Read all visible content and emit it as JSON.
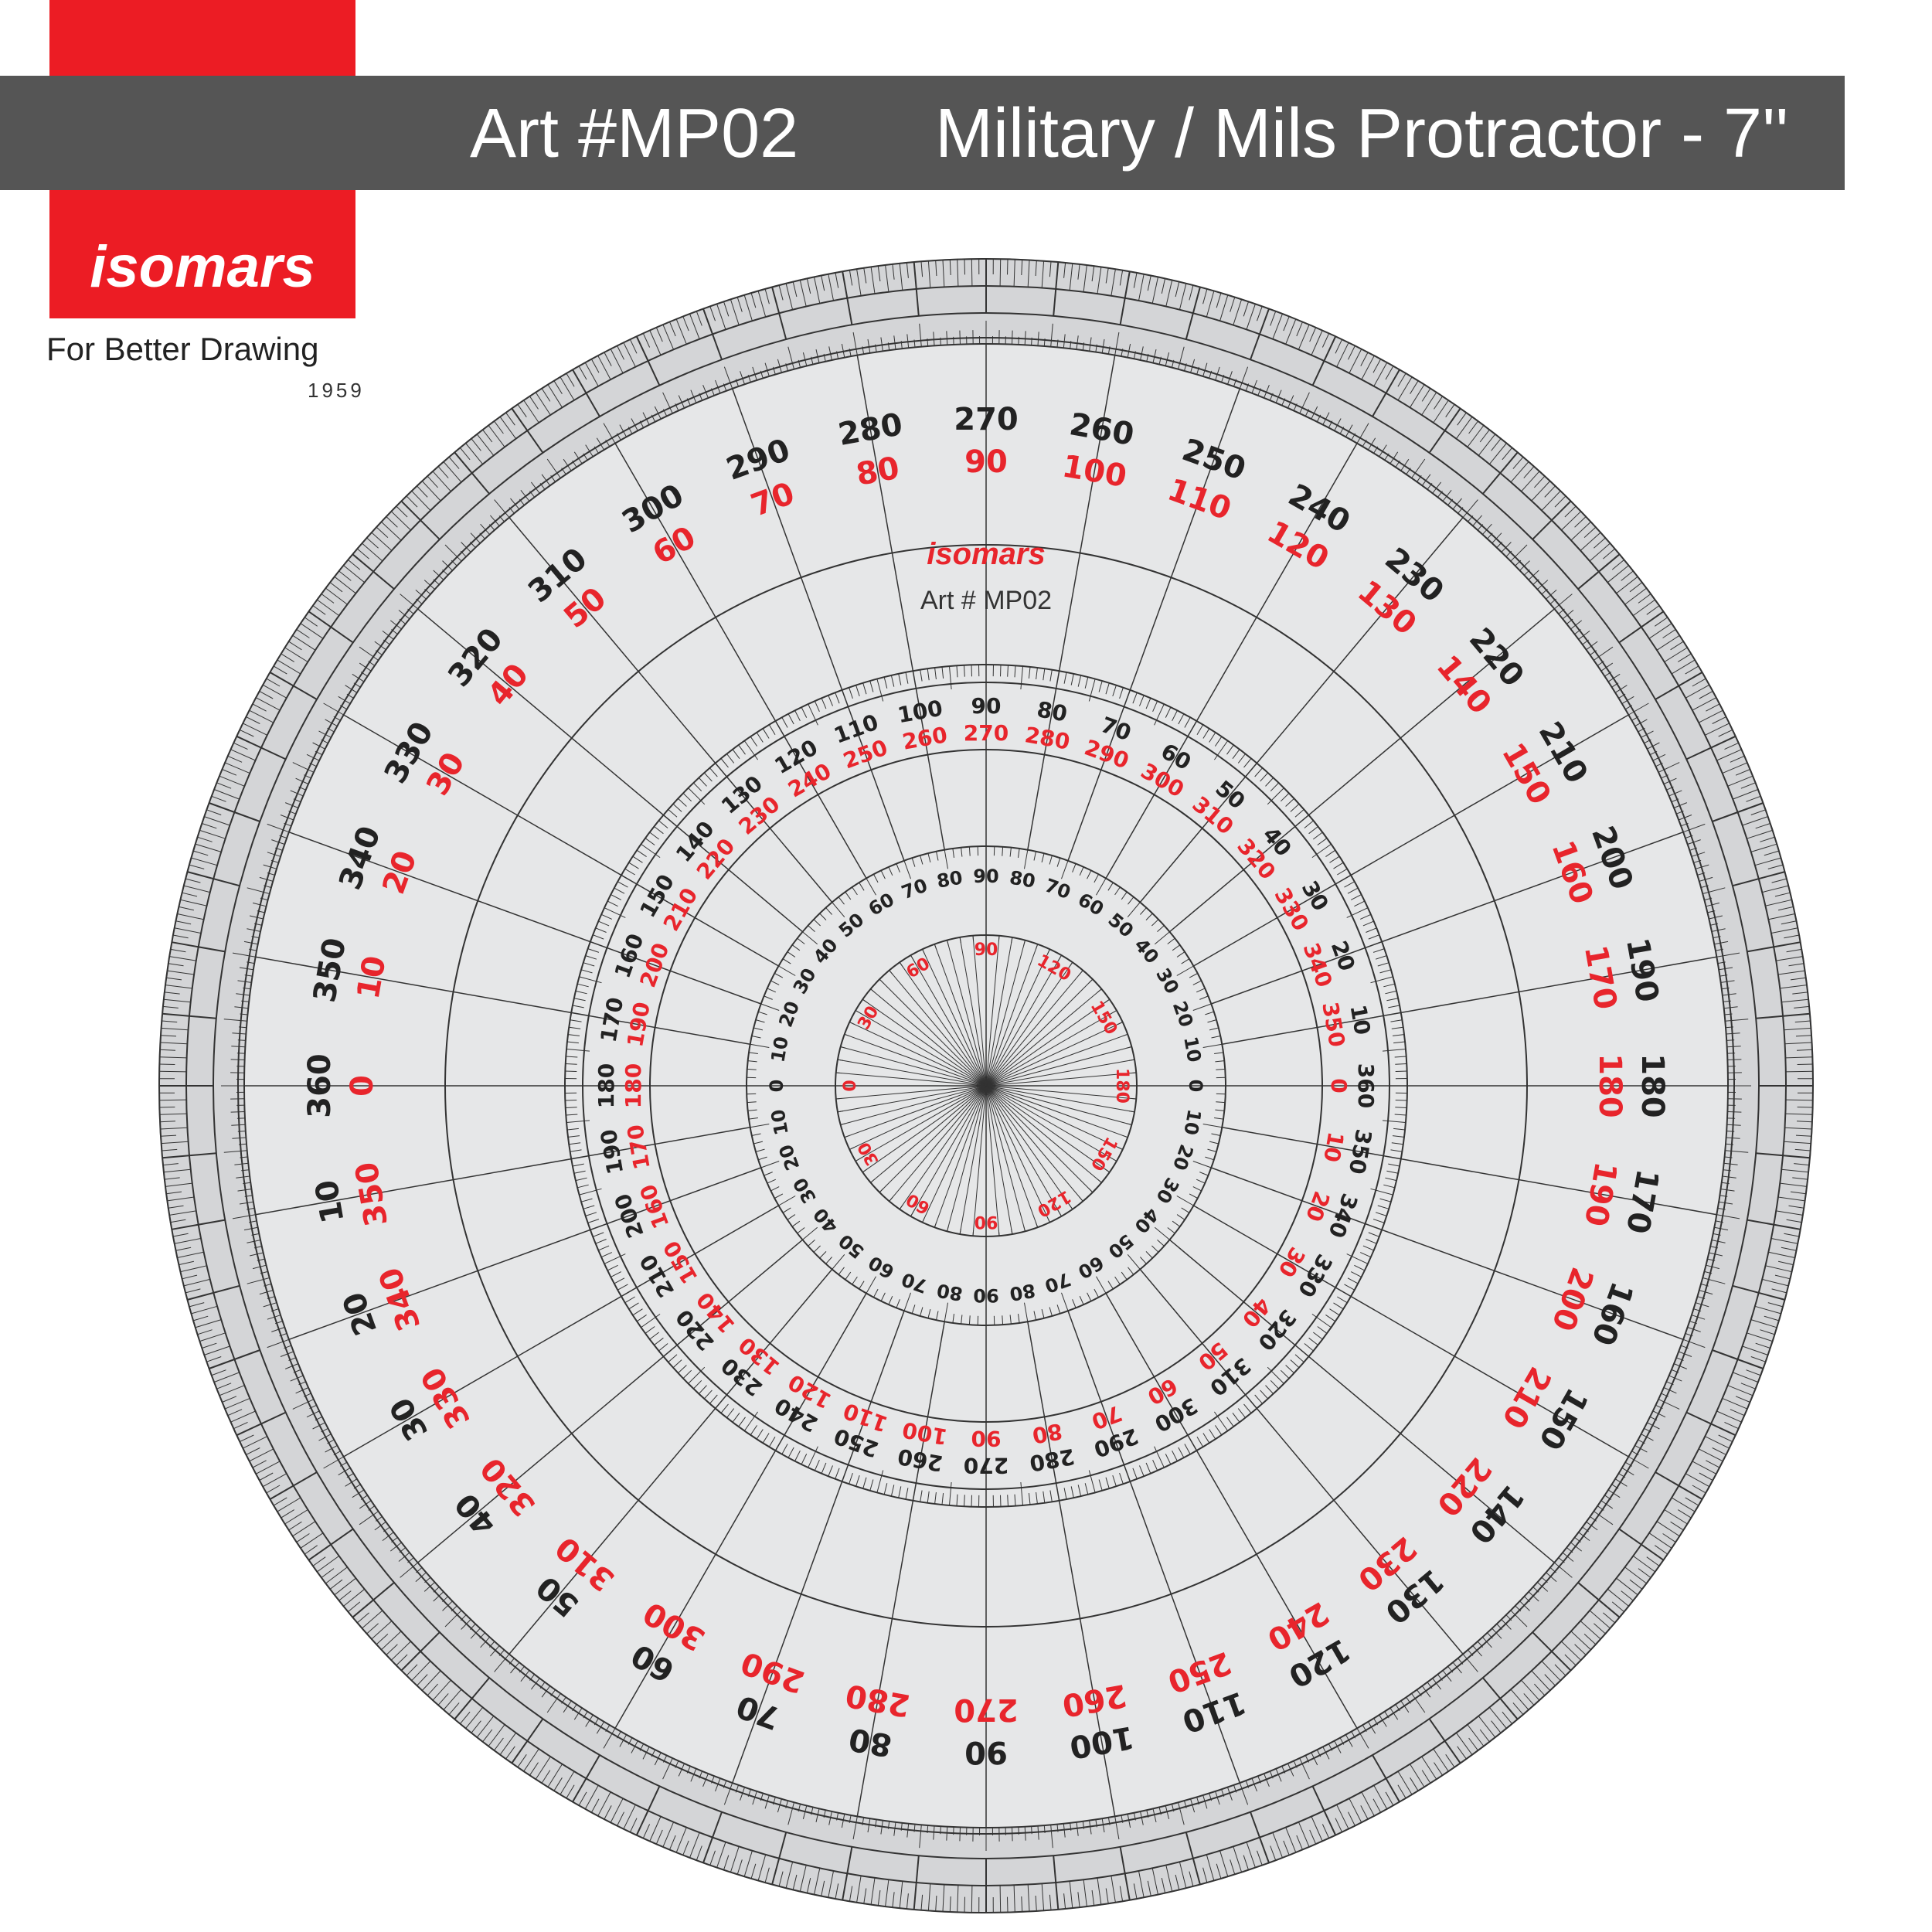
{
  "header": {
    "art_title": "Art #MP02",
    "product_title": "Military / Mils Protractor - 7''"
  },
  "brand": {
    "logo_text": "isomars",
    "tagline": "For Better Drawing",
    "year": "1959",
    "color": "#ec1c24"
  },
  "protractor": {
    "center_brand": "isomars",
    "center_art": "Art # MP02",
    "outer_black_labels": [
      "360",
      "350",
      "340",
      "330",
      "320",
      "310",
      "300",
      "290",
      "280",
      "270",
      "260",
      "250",
      "240",
      "230",
      "220",
      "210",
      "200",
      "190",
      "180",
      "170",
      "160",
      "150",
      "140",
      "130",
      "120",
      "110",
      "100",
      "90",
      "80",
      "70",
      "60",
      "50",
      "40",
      "30",
      "20",
      "10"
    ],
    "outer_red_labels": [
      "0",
      "10",
      "20",
      "30",
      "40",
      "50",
      "60",
      "70",
      "80",
      "90",
      "100",
      "110",
      "120",
      "130",
      "140",
      "150",
      "160",
      "170",
      "180",
      "190",
      "200",
      "210",
      "220",
      "230",
      "240",
      "250",
      "260",
      "270",
      "280",
      "290",
      "300",
      "310",
      "320",
      "330",
      "340",
      "350"
    ],
    "middle_black_labels": [
      "180",
      "170",
      "160",
      "150",
      "140",
      "130",
      "120",
      "110",
      "100",
      "90",
      "80",
      "70",
      "60",
      "50",
      "40",
      "30",
      "20",
      "10",
      "360",
      "350",
      "340",
      "330",
      "320",
      "310",
      "300",
      "290",
      "280",
      "270",
      "260",
      "250",
      "240",
      "230",
      "220",
      "210",
      "200",
      "190"
    ],
    "middle_red_labels": [
      "180",
      "190",
      "200",
      "210",
      "220",
      "230",
      "240",
      "250",
      "260",
      "270",
      "280",
      "290",
      "300",
      "310",
      "320",
      "330",
      "340",
      "350",
      "0",
      "10",
      "20",
      "30",
      "40",
      "50",
      "60",
      "70",
      "80",
      "90",
      "100",
      "110",
      "120",
      "130",
      "140",
      "150",
      "160",
      "170"
    ],
    "inner_black_labels": [
      "0",
      "10",
      "20",
      "30",
      "40",
      "50",
      "60",
      "70",
      "80",
      "90",
      "80",
      "70",
      "60",
      "50",
      "40",
      "30",
      "20",
      "10",
      "0",
      "10",
      "20",
      "30",
      "40",
      "50",
      "60",
      "70",
      "80",
      "90",
      "80",
      "70",
      "60",
      "50",
      "40",
      "30",
      "20",
      "10"
    ],
    "innermost_red_labels": [
      "0",
      "30",
      "60",
      "90",
      "120",
      "150",
      "180",
      "150",
      "120",
      "90",
      "60",
      "30"
    ],
    "colors": {
      "black": "#222222",
      "red": "#e8252c",
      "disc": "#e6e7e8",
      "rim": "#d4d5d7",
      "lines": "#333333"
    }
  }
}
